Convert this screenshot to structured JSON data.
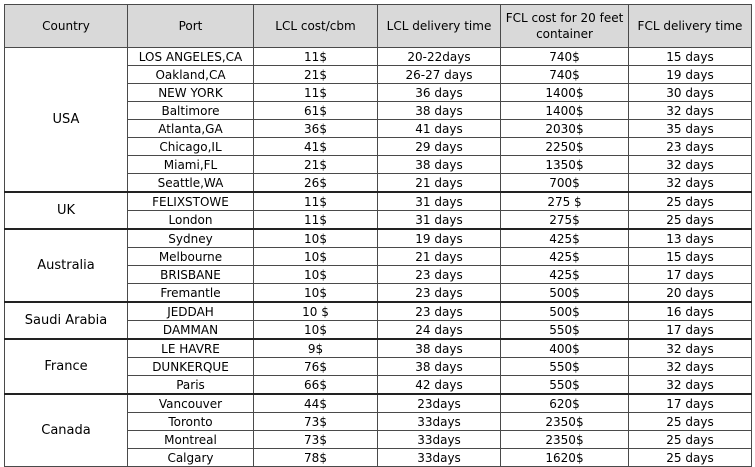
{
  "headers": [
    "Country",
    "Port",
    "LCL cost/cbm",
    "LCL delivery time",
    "FCL cost for 20 feet container",
    "FCL delivery time"
  ],
  "groups": [
    {
      "country": "USA",
      "rows": [
        [
          "LOS ANGELES,CA",
          "11$",
          "20-22days",
          "740$",
          "15 days"
        ],
        [
          "Oakland,CA",
          "21$",
          "26-27 days",
          "740$",
          "19 days"
        ],
        [
          "NEW YORK",
          "11$",
          "36 days",
          "1400$",
          "30 days"
        ],
        [
          "Baltimore",
          "61$",
          "38 days",
          "1400$",
          "32 days"
        ],
        [
          "Atlanta,GA",
          "36$",
          "41 days",
          "2030$",
          "35 days"
        ],
        [
          "Chicago,IL",
          "41$",
          "29 days",
          "2250$",
          "23 days"
        ],
        [
          "Miami,FL",
          "21$",
          "38 days",
          "1350$",
          "32 days"
        ],
        [
          "Seattle,WA",
          "26$",
          "21 days",
          "700$",
          "32 days"
        ]
      ]
    },
    {
      "country": "UK",
      "rows": [
        [
          "FELIXSTOWE",
          "11$",
          "31 days",
          "275 $",
          "25 days"
        ],
        [
          "London",
          "11$",
          "31 days",
          "275$",
          "25 days"
        ]
      ]
    },
    {
      "country": "Australia",
      "rows": [
        [
          "Sydney",
          "10$",
          "19 days",
          "425$",
          "13 days"
        ],
        [
          "Melbourne",
          "10$",
          "21 days",
          "425$",
          "15 days"
        ],
        [
          "BRISBANE",
          "10$",
          "23 days",
          "425$",
          "17 days"
        ],
        [
          "Fremantle",
          "10$",
          "23 days",
          "500$",
          "20 days"
        ]
      ]
    },
    {
      "country": "Saudi Arabia",
      "rows": [
        [
          "JEDDAH",
          "10 $",
          "23 days",
          "500$",
          "16 days"
        ],
        [
          "DAMMAN",
          "10$",
          "24 days",
          "550$",
          "17 days"
        ]
      ]
    },
    {
      "country": "France",
      "rows": [
        [
          "LE HAVRE",
          "9$",
          "38 days",
          "400$",
          "32 days"
        ],
        [
          "DUNKERQUE",
          "76$",
          "38 days",
          "550$",
          "32 days"
        ],
        [
          "Paris",
          "66$",
          "42 days",
          "550$",
          "32 days"
        ]
      ]
    },
    {
      "country": "Canada",
      "rows": [
        [
          "Vancouver",
          "44$",
          "23days",
          "620$",
          "17 days"
        ],
        [
          "Toronto",
          "73$",
          "33days",
          "2350$",
          "25 days"
        ],
        [
          "Montreal",
          "73$",
          "33days",
          "2350$",
          "25 days"
        ],
        [
          "Calgary",
          "78$",
          "33days",
          "1620$",
          "25 days"
        ]
      ]
    }
  ]
}
